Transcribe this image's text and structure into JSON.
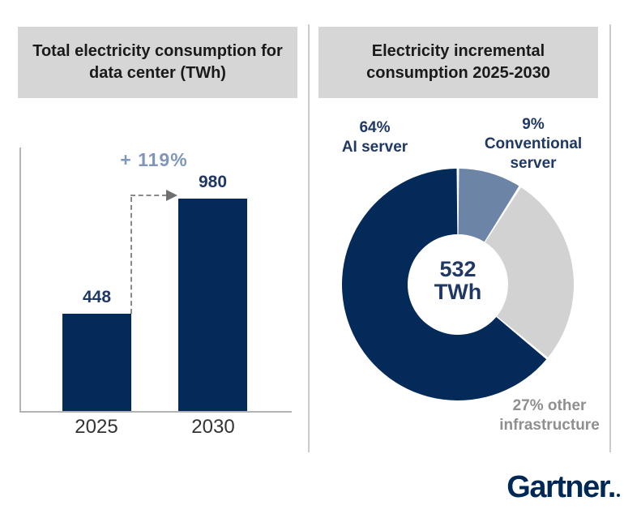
{
  "brand": {
    "logo_text": "Gartner."
  },
  "panels": {
    "left": {
      "title": "Total electricity consumption for data center (TWh)"
    },
    "right": {
      "title": "Electricity incremental consumption 2025-2030"
    }
  },
  "colors": {
    "navy": "#042a5a",
    "label_navy": "#1f3864",
    "steel_blue_text": "#8096ba",
    "gray_label": "#8f8f8f",
    "header_bg": "#d6d6d6",
    "gartner_navy": "#002856"
  },
  "chart_data": [
    {
      "type": "bar",
      "title": "Total electricity consumption for data center (TWh)",
      "categories": [
        "2025",
        "2030"
      ],
      "values": [
        448,
        980
      ],
      "growth_annotation": "+ 119%",
      "unit": "TWh",
      "bar_color": "#042a5a",
      "ylim": [
        0,
        1000
      ],
      "grid": false
    },
    {
      "type": "pie",
      "subtype": "donut",
      "title": "Electricity incremental consumption 2025-2030",
      "center_label": {
        "value": "532",
        "unit": "TWh"
      },
      "start_angle_deg": 0,
      "direction": "clockwise",
      "segments": [
        {
          "key": "conventional-server",
          "name": "Conventional server",
          "pct": 9,
          "color": "#6c84a6",
          "label_lines": [
            "9%",
            "Conventional server"
          ]
        },
        {
          "key": "other-infrastructure",
          "name": "Other infrastructure",
          "pct": 27,
          "color": "#d2d2d2",
          "label_lines": [
            "27% other infrastructure"
          ]
        },
        {
          "key": "ai-server",
          "name": "AI server",
          "pct": 64,
          "color": "#042a5a",
          "label_lines": [
            "64%",
            "AI server"
          ]
        }
      ]
    }
  ]
}
